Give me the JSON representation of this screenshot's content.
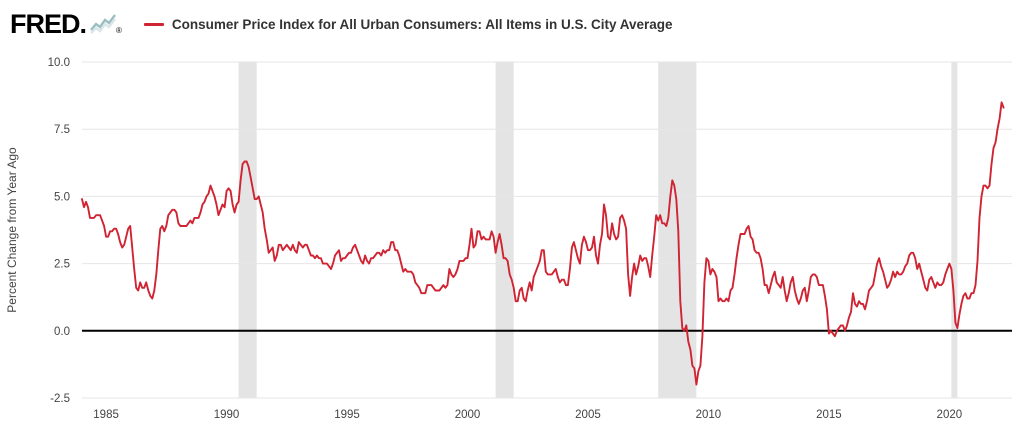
{
  "header": {
    "logo_text": "FRED",
    "logo_dot": ".",
    "logo_registered": "®",
    "series_title": "Consumer Price Index for All Urban Consumers: All Items in U.S. City Average"
  },
  "chart_data": {
    "type": "line",
    "title": "Consumer Price Index for All Urban Consumers: All Items in U.S. City Average",
    "xlabel": "",
    "ylabel": "Percent Change from Year Ago",
    "ylim": [
      -2.5,
      10.0
    ],
    "xlim": [
      1984.0,
      2022.6
    ],
    "yticks": [
      -2.5,
      0.0,
      2.5,
      5.0,
      7.5,
      10.0
    ],
    "xticks": [
      1985,
      1990,
      1995,
      2000,
      2005,
      2010,
      2015,
      2020
    ],
    "grid": "horizontal",
    "legend_position": "top",
    "line_color": "#d02433",
    "zero_line_color": "#000000",
    "grid_color": "#e6e6e6",
    "tick_label_color": "#444444",
    "recession_band_color": "#e4e4e4",
    "recession_bands": [
      [
        1990.5,
        1991.25
      ],
      [
        2001.167,
        2001.917
      ],
      [
        2007.917,
        2009.5
      ],
      [
        2020.083,
        2020.333
      ]
    ],
    "series": [
      {
        "name": "Consumer Price Index for All Urban Consumers: All Items in U.S. City Average",
        "frequency": "monthly",
        "values_by_year": {
          "1984": [
            4.9,
            4.6,
            4.8,
            4.6,
            4.2,
            4.2,
            4.2,
            4.3,
            4.3,
            4.3,
            4.1,
            3.9
          ],
          "1985": [
            3.5,
            3.5,
            3.7,
            3.7,
            3.8,
            3.8,
            3.6,
            3.3,
            3.1,
            3.2,
            3.5,
            3.8
          ],
          "1986": [
            3.9,
            3.1,
            2.3,
            1.6,
            1.5,
            1.8,
            1.6,
            1.6,
            1.8,
            1.5,
            1.3,
            1.2
          ],
          "1987": [
            1.5,
            2.1,
            3.0,
            3.8,
            3.9,
            3.7,
            3.9,
            4.3,
            4.4,
            4.5,
            4.5,
            4.4
          ],
          "1988": [
            4.0,
            3.9,
            3.9,
            3.9,
            3.9,
            4.0,
            4.1,
            4.0,
            4.2,
            4.2,
            4.2,
            4.4
          ],
          "1989": [
            4.7,
            4.8,
            5.0,
            5.1,
            5.4,
            5.2,
            5.0,
            4.7,
            4.3,
            4.5,
            4.7,
            4.6
          ],
          "1990": [
            5.2,
            5.3,
            5.2,
            4.7,
            4.4,
            4.7,
            4.8,
            5.6,
            6.2,
            6.3,
            6.3,
            6.1
          ],
          "1991": [
            5.7,
            5.3,
            4.9,
            4.9,
            5.0,
            4.7,
            4.4,
            3.8,
            3.4,
            2.9,
            3.0,
            3.1
          ],
          "1992": [
            2.6,
            2.8,
            3.2,
            3.2,
            3.0,
            3.1,
            3.2,
            3.1,
            3.0,
            3.2,
            3.0,
            2.9
          ],
          "1993": [
            3.3,
            3.2,
            3.1,
            3.2,
            3.2,
            3.0,
            2.8,
            2.8,
            2.7,
            2.8,
            2.7,
            2.7
          ],
          "1994": [
            2.5,
            2.5,
            2.5,
            2.4,
            2.3,
            2.5,
            2.8,
            2.9,
            3.0,
            2.6,
            2.7,
            2.7
          ],
          "1995": [
            2.8,
            2.9,
            2.9,
            3.1,
            3.2,
            3.0,
            2.8,
            2.6,
            2.5,
            2.8,
            2.6,
            2.5
          ],
          "1996": [
            2.7,
            2.7,
            2.8,
            2.9,
            2.9,
            2.8,
            3.0,
            2.9,
            3.0,
            3.0,
            3.3,
            3.3
          ],
          "1997": [
            3.0,
            3.0,
            2.8,
            2.5,
            2.2,
            2.3,
            2.2,
            2.2,
            2.2,
            2.1,
            1.8,
            1.7
          ],
          "1998": [
            1.6,
            1.4,
            1.4,
            1.4,
            1.7,
            1.7,
            1.7,
            1.6,
            1.5,
            1.5,
            1.5,
            1.6
          ],
          "1999": [
            1.7,
            1.6,
            1.7,
            2.3,
            2.1,
            2.0,
            2.1,
            2.3,
            2.6,
            2.6,
            2.6,
            2.7
          ],
          "2000": [
            2.7,
            3.2,
            3.8,
            3.1,
            3.2,
            3.7,
            3.7,
            3.4,
            3.5,
            3.4,
            3.4,
            3.4
          ],
          "2001": [
            3.7,
            3.5,
            2.9,
            3.3,
            3.6,
            3.2,
            2.7,
            2.7,
            2.6,
            2.1,
            1.9,
            1.6
          ],
          "2002": [
            1.1,
            1.1,
            1.5,
            1.6,
            1.2,
            1.1,
            1.5,
            1.8,
            1.5,
            2.0,
            2.2,
            2.4
          ],
          "2003": [
            2.6,
            3.0,
            3.0,
            2.2,
            2.1,
            2.1,
            2.1,
            2.2,
            2.3,
            2.0,
            1.8,
            1.9
          ],
          "2004": [
            1.9,
            1.7,
            1.7,
            2.3,
            3.1,
            3.3,
            3.0,
            2.7,
            2.5,
            3.2,
            3.5,
            3.3
          ],
          "2005": [
            3.0,
            3.0,
            3.1,
            3.5,
            2.8,
            2.5,
            3.2,
            3.6,
            4.7,
            4.3,
            3.5,
            3.4
          ],
          "2006": [
            4.0,
            3.6,
            3.4,
            3.5,
            4.2,
            4.3,
            4.1,
            3.8,
            2.1,
            1.3,
            2.0,
            2.5
          ],
          "2007": [
            2.1,
            2.4,
            2.8,
            2.6,
            2.7,
            2.7,
            2.4,
            2.0,
            2.8,
            3.5,
            4.3,
            4.1
          ],
          "2008": [
            4.3,
            4.0,
            4.0,
            3.9,
            4.2,
            5.0,
            5.6,
            5.4,
            4.9,
            3.7,
            1.1,
            0.1
          ],
          "2009": [
            0.0,
            0.2,
            -0.4,
            -0.7,
            -1.3,
            -1.4,
            -2.0,
            -1.5,
            -1.3,
            -0.2,
            1.8,
            2.7
          ],
          "2010": [
            2.6,
            2.1,
            2.3,
            2.2,
            2.0,
            1.1,
            1.2,
            1.1,
            1.1,
            1.2,
            1.1,
            1.5
          ],
          "2011": [
            1.6,
            2.1,
            2.7,
            3.2,
            3.6,
            3.6,
            3.6,
            3.8,
            3.9,
            3.5,
            3.4,
            3.0
          ],
          "2012": [
            2.9,
            2.9,
            2.7,
            2.3,
            1.7,
            1.7,
            1.4,
            1.7,
            2.0,
            2.2,
            1.8,
            1.7
          ],
          "2013": [
            1.6,
            2.0,
            1.5,
            1.1,
            1.4,
            1.8,
            2.0,
            1.5,
            1.2,
            1.0,
            1.2,
            1.5
          ],
          "2014": [
            1.6,
            1.1,
            1.5,
            2.0,
            2.1,
            2.1,
            2.0,
            1.7,
            1.7,
            1.7,
            1.3,
            0.8
          ],
          "2015": [
            -0.1,
            0.0,
            -0.1,
            -0.2,
            0.0,
            0.1,
            0.2,
            0.2,
            0.0,
            0.2,
            0.5,
            0.7
          ],
          "2016": [
            1.4,
            1.0,
            0.9,
            1.1,
            1.0,
            1.0,
            0.8,
            1.1,
            1.5,
            1.6,
            1.7,
            2.1
          ],
          "2017": [
            2.5,
            2.7,
            2.4,
            2.2,
            1.9,
            1.6,
            1.7,
            1.9,
            2.2,
            2.0,
            2.2,
            2.1
          ],
          "2018": [
            2.1,
            2.2,
            2.4,
            2.5,
            2.8,
            2.9,
            2.9,
            2.7,
            2.3,
            2.5,
            2.2,
            1.9
          ],
          "2019": [
            1.6,
            1.5,
            1.9,
            2.0,
            1.8,
            1.6,
            1.8,
            1.7,
            1.7,
            1.8,
            2.1,
            2.3
          ],
          "2020": [
            2.5,
            2.3,
            1.5,
            0.3,
            0.1,
            0.6,
            1.0,
            1.3,
            1.4,
            1.2,
            1.2,
            1.4
          ],
          "2021": [
            1.4,
            1.7,
            2.6,
            4.2,
            5.0,
            5.4,
            5.4,
            5.3,
            5.4,
            6.2,
            6.8,
            7.0
          ],
          "2022": [
            7.5,
            7.9,
            8.5,
            8.3
          ]
        }
      }
    ]
  }
}
